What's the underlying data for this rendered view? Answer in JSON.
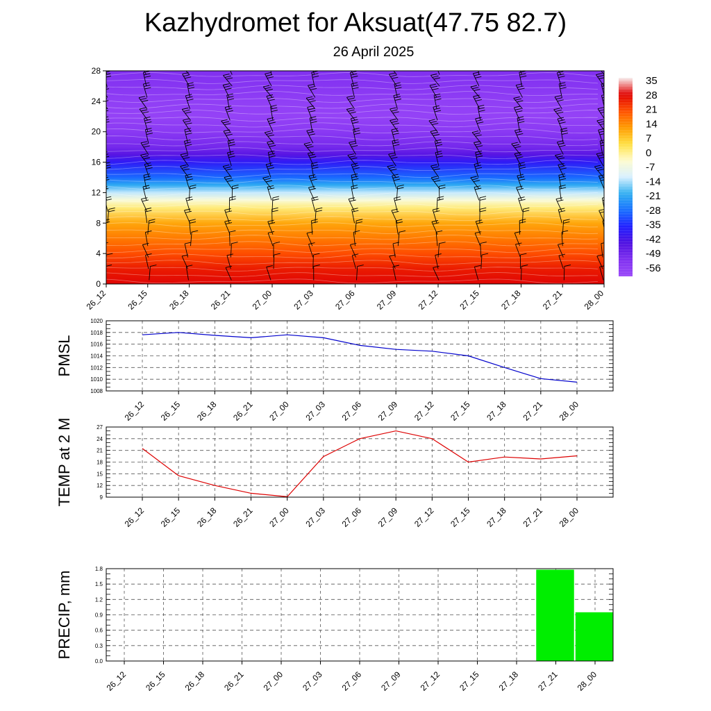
{
  "title": "Kazhydromet for Aksuat(47.75 82.7)",
  "subtitle": "26 April 2025",
  "time_labels": [
    "26_12",
    "26_15",
    "26_18",
    "26_21",
    "27_00",
    "27_03",
    "27_06",
    "27_09",
    "27_12",
    "27_15",
    "27_18",
    "27_21",
    "28_00"
  ],
  "chart_data": [
    {
      "type": "heatmap",
      "variable": "",
      "ylim": [
        0,
        28
      ],
      "y_ticks": [
        0,
        4,
        8,
        12,
        16,
        20,
        24,
        28
      ],
      "x_ticks": [
        "26_12",
        "26_15",
        "26_18",
        "26_21",
        "27_00",
        "27_03",
        "27_06",
        "27_09",
        "27_12",
        "27_15",
        "27_18",
        "27_21",
        "28_00"
      ],
      "colorbar_labels": [
        "35",
        "28",
        "21",
        "14",
        "7",
        "0",
        "-7",
        "-14",
        "-21",
        "-28",
        "-35",
        "-42",
        "-49",
        "-56"
      ],
      "colorbar_range": [
        -60,
        38
      ],
      "temperature_profile": {
        "height": [
          0,
          2,
          4,
          6,
          8,
          10,
          11,
          12,
          13,
          14,
          16,
          17,
          18,
          20,
          22,
          24,
          26,
          28
        ],
        "value": [
          30,
          27,
          22,
          17,
          12,
          2,
          -4,
          -12,
          -20,
          -28,
          -38,
          -45,
          -50,
          -55,
          -58,
          -57,
          -54,
          -52
        ]
      },
      "overlay": "wind barbs",
      "grid": false,
      "colors": {
        "scale": [
          "#f8f0f0",
          "#e00000",
          "#ff5000",
          "#ff9a00",
          "#ffe040",
          "#fffcd0",
          "#d8f0ff",
          "#30b0f0",
          "#1870ff",
          "#2020ff",
          "#5010e0",
          "#8030f0",
          "#9a48f8"
        ]
      }
    },
    {
      "type": "line",
      "ylabel": "PMSL",
      "ylim": [
        1008,
        1020
      ],
      "y_ticks": [
        "1008",
        "1010",
        "1012",
        "1014",
        "1016",
        "1018",
        "1020"
      ],
      "x": [
        "26_12",
        "26_15",
        "26_18",
        "26_21",
        "27_00",
        "27_03",
        "27_06",
        "27_09",
        "27_12",
        "27_15",
        "27_18",
        "27_21",
        "28_00"
      ],
      "series": [
        {
          "values": [
            1017.6,
            1018.0,
            1017.5,
            1017.1,
            1017.6,
            1017.1,
            1015.8,
            1015.1,
            1014.8,
            1014.0,
            1012.0,
            1010.1,
            1009.5
          ],
          "color": "#0000cc"
        }
      ],
      "grid": true
    },
    {
      "type": "line",
      "ylabel": "TEMP at 2 M",
      "ylim": [
        9,
        27
      ],
      "y_ticks": [
        "9",
        "12",
        "15",
        "18",
        "21",
        "24",
        "27"
      ],
      "x": [
        "26_12",
        "26_15",
        "26_18",
        "26_21",
        "27_00",
        "27_03",
        "27_06",
        "27_09",
        "27_12",
        "27_15",
        "27_18",
        "27_21",
        "28_00"
      ],
      "series": [
        {
          "values": [
            21.5,
            14.5,
            12.0,
            10.0,
            9.1,
            19.4,
            24.0,
            26.0,
            24.0,
            18.0,
            19.3,
            18.8,
            19.6
          ],
          "color": "#dd0000"
        }
      ],
      "grid": true
    },
    {
      "type": "bar",
      "ylabel": "PRECIP, mm",
      "ylim": [
        0,
        1.8
      ],
      "y_ticks": [
        "0.0",
        "0.3",
        "0.6",
        "0.9",
        "1.2",
        "1.5",
        "1.8"
      ],
      "categories": [
        "26_12",
        "26_15",
        "26_18",
        "26_21",
        "27_00",
        "27_03",
        "27_06",
        "27_09",
        "27_12",
        "27_15",
        "27_18",
        "27_21",
        "28_00"
      ],
      "values": [
        0,
        0,
        0,
        0,
        0,
        0,
        0,
        0,
        0,
        0,
        0,
        1.78,
        0.95
      ],
      "color": "#00ee00",
      "grid": true
    }
  ]
}
